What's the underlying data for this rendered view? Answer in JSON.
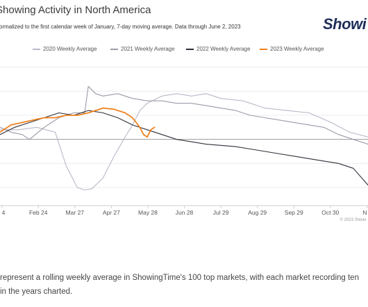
{
  "header": {
    "title": "Showing Activity in North America",
    "subtitle": "ormalized to the first calendar week of January, 7-day moving average. Data through June 2, 2023",
    "logo_text": "Showi"
  },
  "caption": {
    "line1": "represent a rolling weekly average in ShowingTime's 100 top markets, with each market recording ten",
    "line2": "in the years charted."
  },
  "colors": {
    "series_2020": "#b8b8c8",
    "series_2021": "#9a9aa8",
    "series_2022": "#2f2f3a",
    "series_2023": "#f0821e",
    "grid": "#ececec",
    "baseline": "#9a9a9a"
  },
  "chart_data": {
    "type": "line",
    "xlabel": "",
    "ylabel": "",
    "x_ticks": [
      "Feb 24",
      "Mar 27",
      "Apr 27",
      "May 28",
      "Jun 28",
      "Jul 29",
      "Aug 29",
      "Sep 29",
      "Oct 30"
    ],
    "x_ticks_partial": [
      "4",
      "N"
    ],
    "credit": "© 2023 Showi",
    "grid": true,
    "baseline": 1.0,
    "ylim": [
      0.45,
      1.65
    ],
    "legend_position": "top",
    "series": [
      {
        "name": "2020 Weekly Average",
        "x": [
          0,
          0.05,
          0.1,
          0.15,
          0.18,
          0.21,
          0.23,
          0.25,
          0.28,
          0.31,
          0.34,
          0.36,
          0.38,
          0.4,
          0.44,
          0.48,
          0.52,
          0.56,
          0.6,
          0.66,
          0.72,
          0.78,
          0.84,
          0.9,
          0.95,
          1.0
        ],
        "y": [
          1.08,
          1.08,
          1.1,
          1.06,
          0.78,
          0.6,
          0.58,
          0.59,
          0.68,
          0.86,
          1.02,
          1.12,
          1.24,
          1.3,
          1.36,
          1.38,
          1.36,
          1.38,
          1.34,
          1.32,
          1.26,
          1.24,
          1.22,
          1.14,
          1.06,
          1.02
        ]
      },
      {
        "name": "2021 Weekly Average",
        "x": [
          0,
          0.03,
          0.06,
          0.08,
          0.12,
          0.16,
          0.2,
          0.23,
          0.24,
          0.26,
          0.28,
          0.32,
          0.36,
          0.4,
          0.44,
          0.48,
          0.52,
          0.56,
          0.6,
          0.64,
          0.68,
          0.72,
          0.76,
          0.8,
          0.84,
          0.88,
          0.92,
          0.96,
          1.0
        ],
        "y": [
          1.1,
          1.06,
          1.04,
          1.0,
          1.1,
          1.18,
          1.22,
          1.22,
          1.44,
          1.38,
          1.36,
          1.38,
          1.34,
          1.32,
          1.32,
          1.3,
          1.3,
          1.28,
          1.26,
          1.24,
          1.2,
          1.18,
          1.16,
          1.14,
          1.12,
          1.1,
          1.04,
          1.0,
          0.96
        ]
      },
      {
        "name": "2022 Weekly Average",
        "x": [
          0,
          0.04,
          0.08,
          0.12,
          0.16,
          0.2,
          0.24,
          0.28,
          0.32,
          0.36,
          0.4,
          0.44,
          0.48,
          0.52,
          0.56,
          0.6,
          0.64,
          0.68,
          0.72,
          0.76,
          0.8,
          0.84,
          0.88,
          0.92,
          0.96,
          1.0
        ],
        "y": [
          1.04,
          1.1,
          1.14,
          1.18,
          1.22,
          1.2,
          1.24,
          1.22,
          1.18,
          1.12,
          1.08,
          1.04,
          1.0,
          0.98,
          0.96,
          0.95,
          0.94,
          0.92,
          0.9,
          0.88,
          0.86,
          0.84,
          0.82,
          0.8,
          0.76,
          0.62
        ]
      },
      {
        "name": "2023 Weekly Average",
        "x": [
          0,
          0.03,
          0.06,
          0.09,
          0.12,
          0.15,
          0.18,
          0.21,
          0.24,
          0.26,
          0.28,
          0.31,
          0.34,
          0.36,
          0.38,
          0.39,
          0.4,
          0.41,
          0.42
        ],
        "y": [
          1.06,
          1.12,
          1.14,
          1.16,
          1.18,
          1.18,
          1.2,
          1.2,
          1.22,
          1.24,
          1.26,
          1.25,
          1.22,
          1.18,
          1.1,
          1.04,
          1.02,
          1.08,
          1.1
        ]
      }
    ]
  }
}
